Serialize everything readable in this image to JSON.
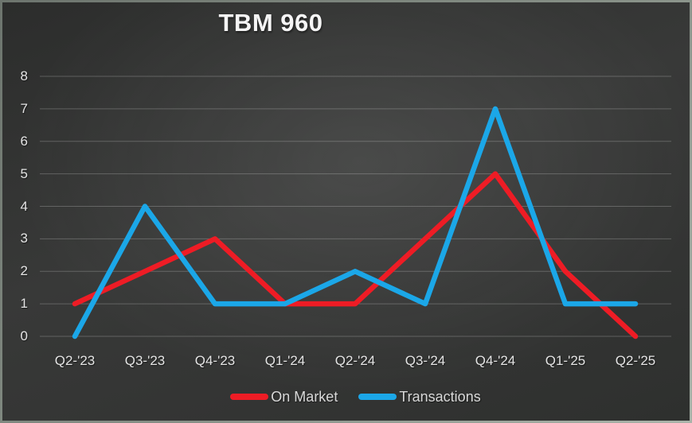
{
  "chart_data": {
    "type": "line",
    "title": "TBM 960",
    "categories": [
      "Q2-'23",
      "Q3-'23",
      "Q4-'23",
      "Q1-'24",
      "Q2-'24",
      "Q3-'24",
      "Q4-'24",
      "Q1-'25",
      "Q2-'25"
    ],
    "series": [
      {
        "name": "On Market",
        "color": "#ee1c25",
        "values": [
          1,
          2,
          3,
          1,
          1,
          3,
          5,
          2,
          0
        ]
      },
      {
        "name": "Transactions",
        "color": "#1ba7e8",
        "values": [
          0,
          4,
          1,
          1,
          2,
          1,
          7,
          1,
          1
        ]
      }
    ],
    "ylim": [
      0,
      8
    ],
    "ytick_step": 1,
    "yticks": [
      "0",
      "1",
      "2",
      "3",
      "4",
      "5",
      "6",
      "7",
      "8"
    ],
    "xlabel": "",
    "ylabel": "",
    "grid": true,
    "legend_position": "bottom"
  },
  "colors": {
    "background_dark": "#2c2d2c",
    "background_light": "#3d3e3d",
    "border": "#8b948c",
    "gridline": "rgba(255,255,255,0.22)",
    "axis_text": "#e4e4e4",
    "title_text": "#f6f6f6",
    "series_on_market": "#ee1c25",
    "series_transactions": "#1ba7e8"
  }
}
